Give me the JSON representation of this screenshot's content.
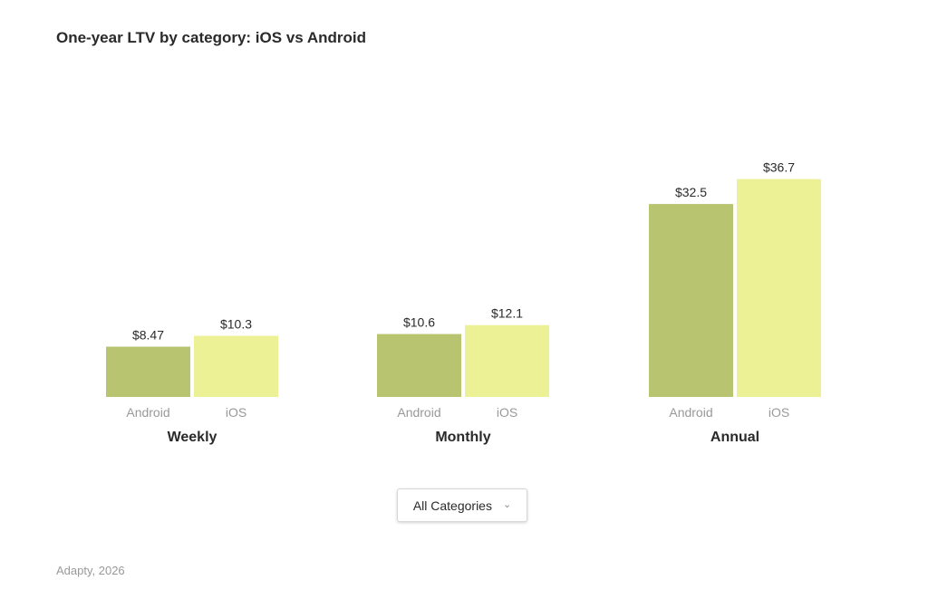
{
  "title": "One-year LTV by category: iOS vs Android",
  "dropdown": {
    "selected": "All Categories",
    "icon": "chevron-down-icon"
  },
  "source": "Adapty, 2026",
  "colors": {
    "android": "#b8c46f",
    "ios": "#edf196"
  },
  "chart_data": {
    "type": "bar",
    "title": "One-year LTV by category: iOS vs Android",
    "categories": [
      "Weekly",
      "Monthly",
      "Annual"
    ],
    "series": [
      {
        "name": "Android",
        "values": [
          8.47,
          10.6,
          32.5
        ],
        "labels": [
          "$8.47",
          "$10.6",
          "$32.5"
        ]
      },
      {
        "name": "iOS",
        "values": [
          10.3,
          12.1,
          36.7
        ],
        "labels": [
          "$10.3",
          "$12.1",
          "$36.7"
        ]
      }
    ],
    "xlabel": "",
    "ylabel": "",
    "grid": false,
    "legend": "none"
  }
}
